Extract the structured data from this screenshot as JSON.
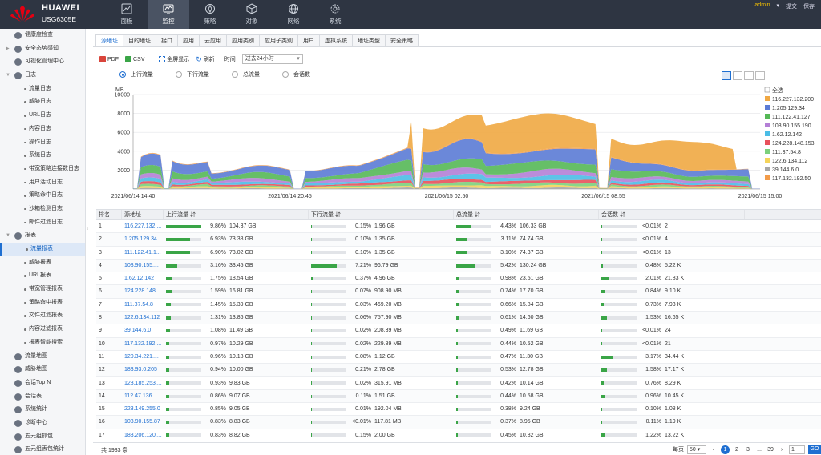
{
  "header": {
    "brand": "HUAWEI",
    "model": "USG6305E",
    "nav": [
      {
        "label": "面板",
        "icon": "dashboard-icon",
        "active": false
      },
      {
        "label": "监控",
        "icon": "monitor-icon",
        "active": true
      },
      {
        "label": "策略",
        "icon": "policy-icon",
        "active": false
      },
      {
        "label": "对象",
        "icon": "object-icon",
        "active": false
      },
      {
        "label": "网络",
        "icon": "network-icon",
        "active": false
      },
      {
        "label": "系统",
        "icon": "gear-icon",
        "active": false
      }
    ],
    "user": "admin",
    "commit": "提交",
    "save": "保存"
  },
  "sidebar": {
    "items": [
      {
        "label": "健康度检查",
        "level": 0,
        "expand": ""
      },
      {
        "label": "安全态势感知",
        "level": 0,
        "expand": "▶"
      },
      {
        "label": "可视化管理中心",
        "level": 0,
        "expand": ""
      },
      {
        "label": "日志",
        "level": 0,
        "expand": "▼"
      },
      {
        "label": "流量日志",
        "level": 1
      },
      {
        "label": "威胁日志",
        "level": 1
      },
      {
        "label": "URL日志",
        "level": 1
      },
      {
        "label": "内容日志",
        "level": 1
      },
      {
        "label": "操作日志",
        "level": 1
      },
      {
        "label": "系统日志",
        "level": 1
      },
      {
        "label": "带宽策略连接数日志",
        "level": 1
      },
      {
        "label": "用户活动日志",
        "level": 1
      },
      {
        "label": "策略命中日志",
        "level": 1
      },
      {
        "label": "沙箱检测日志",
        "level": 1
      },
      {
        "label": "邮件过滤日志",
        "level": 1
      },
      {
        "label": "报表",
        "level": 0,
        "expand": "▼"
      },
      {
        "label": "流量报表",
        "level": 1,
        "active": true
      },
      {
        "label": "威胁报表",
        "level": 1
      },
      {
        "label": "URL报表",
        "level": 1
      },
      {
        "label": "带宽管理报表",
        "level": 1
      },
      {
        "label": "策略命中报表",
        "level": 1
      },
      {
        "label": "文件过滤报表",
        "level": 1
      },
      {
        "label": "内容过滤报表",
        "level": 1
      },
      {
        "label": "报表智能搜索",
        "level": 1
      },
      {
        "label": "流量地图",
        "level": 0,
        "expand": ""
      },
      {
        "label": "威胁地图",
        "level": 0,
        "expand": ""
      },
      {
        "label": "会话Top N",
        "level": 0,
        "expand": ""
      },
      {
        "label": "会话表",
        "level": 0,
        "expand": ""
      },
      {
        "label": "系统统计",
        "level": 0,
        "expand": ""
      },
      {
        "label": "诊断中心",
        "level": 0,
        "expand": ""
      },
      {
        "label": "五元组抓包",
        "level": 0,
        "expand": ""
      },
      {
        "label": "五元组丢包统计",
        "level": 0,
        "expand": ""
      }
    ]
  },
  "tabs": [
    "源地址",
    "目的地址",
    "接口",
    "应用",
    "云应用",
    "应用类别",
    "应用子类别",
    "用户",
    "虚拟系统",
    "地址类型",
    "安全策略"
  ],
  "toolbar": {
    "pdf": "PDF",
    "csv": "CSV",
    "fullscreen": "全屏显示",
    "refresh": "刷新",
    "time_label": "时间",
    "time_value": "过去24小时"
  },
  "radios": [
    {
      "label": "上行流量",
      "checked": true
    },
    {
      "label": "下行流量",
      "checked": false
    },
    {
      "label": "总流量",
      "checked": false
    },
    {
      "label": "会话数",
      "checked": false
    }
  ],
  "chart_data": {
    "type": "area",
    "ylabel": "MB",
    "ylim": [
      0,
      10000
    ],
    "yticks": [
      2000,
      4000,
      6000,
      8000,
      10000
    ],
    "xticks": [
      "2021/06/14 14:40",
      "2021/06/14 20:45",
      "2021/06/15 02:50",
      "2021/06/15 08:55",
      "2021/06/15 15:00"
    ],
    "legend_placement": "right",
    "legend_all": "全选",
    "series": [
      {
        "name": "116.227.132.200",
        "color": "#f0a843"
      },
      {
        "name": "1.205.129.34",
        "color": "#5b7bd5"
      },
      {
        "name": "111.122.41.127",
        "color": "#55b856"
      },
      {
        "name": "103.90.155.190",
        "color": "#b47fd6"
      },
      {
        "name": "1.62.12.142",
        "color": "#4bbde6"
      },
      {
        "name": "124.228.148.153",
        "color": "#e8505b"
      },
      {
        "name": "111.37.54.8",
        "color": "#7cd07c"
      },
      {
        "name": "122.6.134.112",
        "color": "#f5d45a"
      },
      {
        "name": "39.144.6.0",
        "color": "#a7a7a7"
      },
      {
        "name": "117.132.192.50",
        "color": "#f39c4a"
      }
    ]
  },
  "table": {
    "headers": [
      "排名",
      "源地址",
      "上行流量",
      "下行流量",
      "总流量",
      "会话数"
    ],
    "rows": [
      {
        "rank": "1",
        "src": "116.227.132....",
        "up_p": "9.86%",
        "up": "104.37 GB",
        "dn_p": "0.15%",
        "dn": "1.96 GB",
        "tot_p": "4.43%",
        "tot": "106.33 GB",
        "ses_p": "<0.01%",
        "ses": "2",
        "f": [
          0.1,
          0.0015,
          0.044,
          0.0001
        ]
      },
      {
        "rank": "2",
        "src": "1.205.129.34",
        "up_p": "6.93%",
        "up": "73.38 GB",
        "dn_p": "0.10%",
        "dn": "1.35 GB",
        "tot_p": "3.11%",
        "tot": "74.74 GB",
        "ses_p": "<0.01%",
        "ses": "4",
        "f": [
          0.069,
          0.001,
          0.031,
          0.0001
        ]
      },
      {
        "rank": "3",
        "src": "111.122.41.1...",
        "up_p": "6.90%",
        "up": "73.02 GB",
        "dn_p": "0.10%",
        "dn": "1.35 GB",
        "tot_p": "3.10%",
        "tot": "74.37 GB",
        "ses_p": "<0.01%",
        "ses": "13",
        "f": [
          0.069,
          0.001,
          0.031,
          0.0001
        ]
      },
      {
        "rank": "4",
        "src": "103.90.155....",
        "up_p": "3.16%",
        "up": "33.45 GB",
        "dn_p": "7.21%",
        "dn": "96.79 GB",
        "tot_p": "5.42%",
        "tot": "130.24 GB",
        "ses_p": "0.48%",
        "ses": "5.22 K",
        "f": [
          0.032,
          0.072,
          0.054,
          0.005
        ]
      },
      {
        "rank": "5",
        "src": "1.62.12.142",
        "up_p": "1.75%",
        "up": "18.54 GB",
        "dn_p": "0.37%",
        "dn": "4.96 GB",
        "tot_p": "0.98%",
        "tot": "23.51 GB",
        "ses_p": "2.01%",
        "ses": "21.83 K",
        "f": [
          0.0175,
          0.0037,
          0.0098,
          0.02
        ]
      },
      {
        "rank": "6",
        "src": "124.228.148....",
        "up_p": "1.59%",
        "up": "16.81 GB",
        "dn_p": "0.07%",
        "dn": "908.90 MB",
        "tot_p": "0.74%",
        "tot": "17.70 GB",
        "ses_p": "0.84%",
        "ses": "9.10 K",
        "f": [
          0.016,
          0.0007,
          0.0074,
          0.0084
        ]
      },
      {
        "rank": "7",
        "src": "111.37.54.8",
        "up_p": "1.45%",
        "up": "15.39 GB",
        "dn_p": "0.03%",
        "dn": "469.20 MB",
        "tot_p": "0.66%",
        "tot": "15.84 GB",
        "ses_p": "0.73%",
        "ses": "7.93 K",
        "f": [
          0.0145,
          0.0003,
          0.0066,
          0.0073
        ]
      },
      {
        "rank": "8",
        "src": "122.6.134.112",
        "up_p": "1.31%",
        "up": "13.86 GB",
        "dn_p": "0.06%",
        "dn": "757.90 MB",
        "tot_p": "0.61%",
        "tot": "14.60 GB",
        "ses_p": "1.53%",
        "ses": "16.65 K",
        "f": [
          0.013,
          0.0006,
          0.0061,
          0.0153
        ]
      },
      {
        "rank": "9",
        "src": "39.144.6.0",
        "up_p": "1.08%",
        "up": "11.49 GB",
        "dn_p": "0.02%",
        "dn": "208.39 MB",
        "tot_p": "0.49%",
        "tot": "11.69 GB",
        "ses_p": "<0.01%",
        "ses": "24",
        "f": [
          0.011,
          0.0002,
          0.0049,
          0.0001
        ]
      },
      {
        "rank": "10",
        "src": "117.132.192....",
        "up_p": "0.97%",
        "up": "10.29 GB",
        "dn_p": "0.02%",
        "dn": "229.89 MB",
        "tot_p": "0.44%",
        "tot": "10.52 GB",
        "ses_p": "<0.01%",
        "ses": "21",
        "f": [
          0.0097,
          0.0002,
          0.0044,
          0.0001
        ]
      },
      {
        "rank": "11",
        "src": "120.34.221....",
        "up_p": "0.96%",
        "up": "10.18 GB",
        "dn_p": "0.08%",
        "dn": "1.12 GB",
        "tot_p": "0.47%",
        "tot": "11.30 GB",
        "ses_p": "3.17%",
        "ses": "34.44 K",
        "f": [
          0.0096,
          0.0008,
          0.0047,
          0.0317
        ]
      },
      {
        "rank": "12",
        "src": "183.93.0.205",
        "up_p": "0.94%",
        "up": "10.00 GB",
        "dn_p": "0.21%",
        "dn": "2.78 GB",
        "tot_p": "0.53%",
        "tot": "12.78 GB",
        "ses_p": "1.58%",
        "ses": "17.17 K",
        "f": [
          0.0094,
          0.0021,
          0.0053,
          0.0158
        ]
      },
      {
        "rank": "13",
        "src": "123.185.253....",
        "up_p": "0.93%",
        "up": "9.83 GB",
        "dn_p": "0.02%",
        "dn": "315.91 MB",
        "tot_p": "0.42%",
        "tot": "10.14 GB",
        "ses_p": "0.76%",
        "ses": "8.29 K",
        "f": [
          0.0093,
          0.0002,
          0.0042,
          0.0076
        ]
      },
      {
        "rank": "14",
        "src": "112.47.136....",
        "up_p": "0.86%",
        "up": "9.07 GB",
        "dn_p": "0.11%",
        "dn": "1.51 GB",
        "tot_p": "0.44%",
        "tot": "10.58 GB",
        "ses_p": "0.96%",
        "ses": "10.45 K",
        "f": [
          0.0086,
          0.0011,
          0.0044,
          0.0096
        ]
      },
      {
        "rank": "15",
        "src": "223.149.255.0",
        "up_p": "0.85%",
        "up": "9.05 GB",
        "dn_p": "0.01%",
        "dn": "192.04 MB",
        "tot_p": "0.38%",
        "tot": "9.24 GB",
        "ses_p": "0.10%",
        "ses": "1.08 K",
        "f": [
          0.0085,
          0.0001,
          0.0038,
          0.001
        ]
      },
      {
        "rank": "16",
        "src": "103.90.155.87",
        "up_p": "0.83%",
        "up": "8.83 GB",
        "dn_p": "<0.01%",
        "dn": "117.81 MB",
        "tot_p": "0.37%",
        "tot": "8.95 GB",
        "ses_p": "0.11%",
        "ses": "1.19 K",
        "f": [
          0.0083,
          0.0001,
          0.0037,
          0.0011
        ]
      },
      {
        "rank": "17",
        "src": "183.206.120....",
        "up_p": "0.83%",
        "up": "8.82 GB",
        "dn_p": "0.15%",
        "dn": "2.00 GB",
        "tot_p": "0.45%",
        "tot": "10.82 GB",
        "ses_p": "1.22%",
        "ses": "13.22 K",
        "f": [
          0.0083,
          0.0015,
          0.0045,
          0.0122
        ]
      }
    ]
  },
  "footer": {
    "total": "共 1933 条",
    "per_page_label": "每页",
    "per_page": "50",
    "prev": "‹",
    "pages": [
      "1",
      "2",
      "3"
    ],
    "ellipsis": "...",
    "last": "39",
    "next": "›",
    "jump_value": "1",
    "go": "GO"
  },
  "colors": {
    "accent": "#1f6fd1",
    "header_bg": "#2e3542",
    "bar_fill": "#3aa547"
  }
}
